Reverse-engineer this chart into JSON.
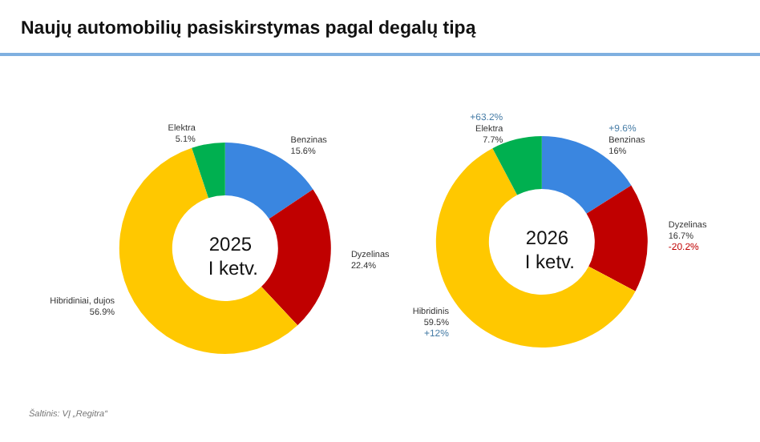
{
  "chart_data": [
    {
      "type": "donut",
      "title": "Naujų automobilių pasiskirstymas pagal degalų tipą",
      "subtitle": "2025 I ketv.",
      "categories": [
        "Benzinas",
        "Dyzelinas",
        "Hibridiniai, dujos",
        "Elektra"
      ],
      "values": [
        15.6,
        22.4,
        56.9,
        5.1
      ],
      "value_labels": [
        "15.6%",
        "22.4%",
        "56.9%",
        "5.1%"
      ],
      "colors": [
        "#3a86e0",
        "#c00000",
        "#ffc800",
        "#00b050"
      ],
      "annotations": [
        "Šaltinis: VĮ „Regitra“"
      ]
    },
    {
      "type": "donut",
      "subtitle": "2026 I ketv.",
      "categories": [
        "Benzinas",
        "Dyzelinas",
        "Hibridinis",
        "Elektra"
      ],
      "values": [
        16,
        16.7,
        59.5,
        7.7
      ],
      "value_labels": [
        "16%",
        "16.7%",
        "59.5%",
        "7.7%"
      ],
      "colors": [
        "#3a86e0",
        "#c00000",
        "#ffc800",
        "#00b050"
      ],
      "annotations": [
        {
          "text": "+9.6%",
          "x": "Benzinas"
        },
        {
          "text": "-20.2%",
          "x": "Dyzelinas"
        },
        {
          "text": "+12%",
          "x": "Hibridinis"
        },
        {
          "text": "+63.2%",
          "x": "Elektra"
        }
      ]
    }
  ]
}
